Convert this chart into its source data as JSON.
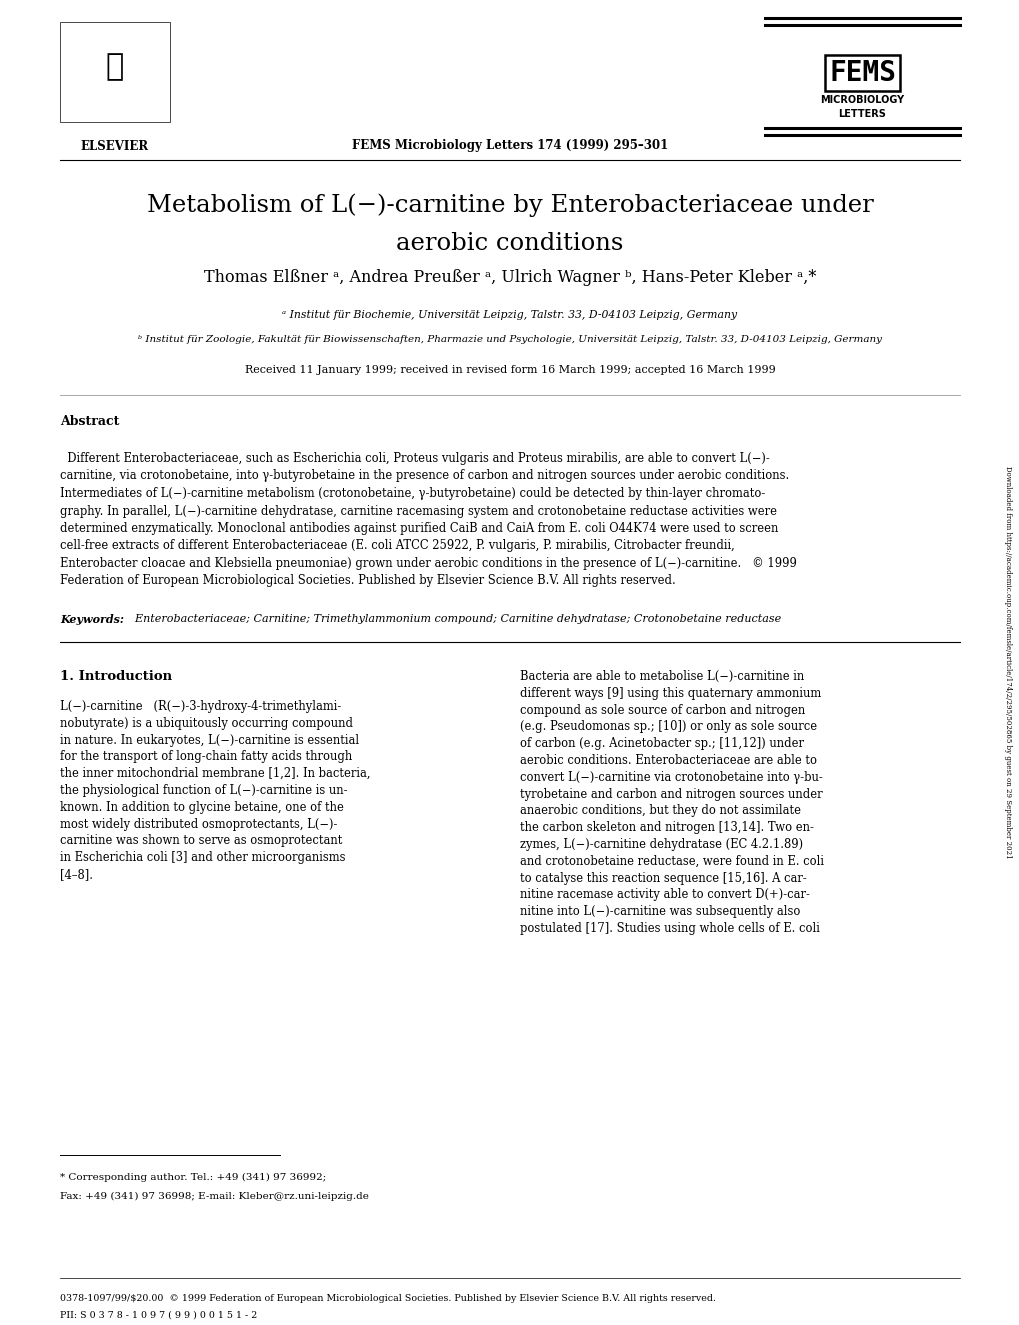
{
  "bg_color": "#ffffff",
  "page_width": 10.2,
  "page_height": 13.25,
  "dpi": 100,
  "journal_ref": "FEMS Microbiology Letters 174 (1999) 295–301",
  "title_line1": "Metabolism of L(−)-carnitine by Enterobacteriaceae under",
  "title_line2": "aerobic conditions",
  "authors": "Thomas Elßner ᵃ, Andrea Preußer ᵃ, Ulrich Wagner ᵇ, Hans-Peter Kleber ᵃ,*",
  "affil_a": "ᵃ Institut für Biochemie, Universität Leipzig, Talstr. 33, D-04103 Leipzig, Germany",
  "affil_b": "ᵇ Institut für Zoologie, Fakultät für Biowissenschaften, Pharmazie und Psychologie, Universität Leipzig, Talstr. 33, D-04103 Leipzig, Germany",
  "received": "Received 11 January 1999; received in revised form 16 March 1999; accepted 16 March 1999",
  "abstract_title": "Abstract",
  "abstract_line1": "  Different Enterobacteriaceae, such as Escherichia coli, Proteus vulgaris and Proteus mirabilis, are able to convert L(−)-",
  "abstract_line2": "carnitine, via crotonobetaine, into γ-butyrobetaine in the presence of carbon and nitrogen sources under aerobic conditions.",
  "abstract_line3": "Intermediates of L(−)-carnitine metabolism (crotonobetaine, γ-butyrobetaine) could be detected by thin-layer chromato-",
  "abstract_line4": "graphy. In parallel, L(−)-carnitine dehydratase, carnitine racemasing system and crotonobetaine reductase activities were",
  "abstract_line5": "determined enzymatically. Monoclonal antibodies against purified CaiB and CaiA from E. coli O44K74 were used to screen",
  "abstract_line6": "cell-free extracts of different Enterobacteriaceae (E. coli ATCC 25922, P. vulgaris, P. mirabilis, Citrobacter freundii,",
  "abstract_line7": "Enterobacter cloacae and Klebsiella pneumoniae) grown under aerobic conditions in the presence of L(−)-carnitine.   © 1999",
  "abstract_line8": "Federation of European Microbiological Societies. Published by Elsevier Science B.V. All rights reserved.",
  "keywords_bold": "Keywords:",
  "keywords_rest": "  Enterobacteriaceae; Carnitine; Trimethylammonium compound; Carnitine dehydratase; Crotonobetaine reductase",
  "intro_title": "1. Introduction",
  "col1_lines": [
    "L(−)-carnitine   (R(−)-3-hydroxy-4-trimethylami-",
    "nobutyrate) is a ubiquitously occurring compound",
    "in nature. In eukaryotes, L(−)-carnitine is essential",
    "for the transport of long-chain fatty acids through",
    "the inner mitochondrial membrane [1,2]. In bacteria,",
    "the physiological function of L(−)-carnitine is un-",
    "known. In addition to glycine betaine, one of the",
    "most widely distributed osmoprotectants, L(−)-",
    "carnitine was shown to serve as osmoprotectant",
    "in Escherichia coli [3] and other microorganisms",
    "[4–8]."
  ],
  "col2_lines": [
    "Bacteria are able to metabolise L(−)-carnitine in",
    "different ways [9] using this quaternary ammonium",
    "compound as sole source of carbon and nitrogen",
    "(e.g. Pseudomonas sp.; [10]) or only as sole source",
    "of carbon (e.g. Acinetobacter sp.; [11,12]) under",
    "aerobic conditions. Enterobacteriaceae are able to",
    "convert L(−)-carnitine via crotonobetaine into γ-bu-",
    "tyrobetaine and carbon and nitrogen sources under",
    "anaerobic conditions, but they do not assimilate",
    "the carbon skeleton and nitrogen [13,14]. Two en-",
    "zymes, L(−)-carnitine dehydratase (EC 4.2.1.89)",
    "and crotonobetaine reductase, were found in E. coli",
    "to catalyse this reaction sequence [15,16]. A car-",
    "nitine racemase activity able to convert D(+)-car-",
    "nitine into L(−)-carnitine was subsequently also",
    "postulated [17]. Studies using whole cells of E. coli"
  ],
  "footnote_line1": "* Corresponding author. Tel.: +49 (341) 97 36992;",
  "footnote_line2": "Fax: +49 (341) 97 36998; E-mail: Kleber@rz.uni-leipzig.de",
  "footer_line1": "0378-1097/99/$20.00  © 1999 Federation of European Microbiological Societies. Published by Elsevier Science B.V. All rights reserved.",
  "footer_line2": "PII: S 0 3 7 8 - 1 0 9 7 ( 9 9 ) 0 0 1 5 1 - 2",
  "sidebar_text": "Downloaded from https://academic.oup.com/femsle/article/174/2/295/502865 by guest on 29 September 2021",
  "fems_text": "FEMS",
  "fems_sub1": "MICROBIOLOGY",
  "fems_sub2": "LETTERS",
  "elsevier_text": "ELSEVIER"
}
